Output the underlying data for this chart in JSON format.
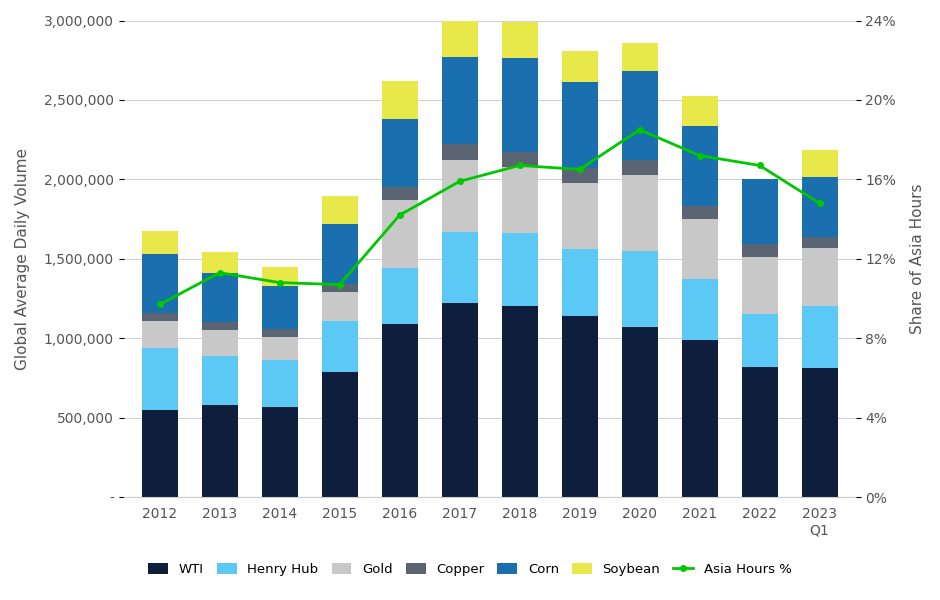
{
  "years": [
    "2012",
    "2013",
    "2014",
    "2015",
    "2016",
    "2017",
    "2018",
    "2019",
    "2020",
    "2021",
    "2022",
    "2023\nQ1"
  ],
  "WTI": [
    550000,
    580000,
    570000,
    790000,
    1090000,
    1220000,
    1200000,
    1140000,
    1070000,
    990000,
    820000,
    810000
  ],
  "HenryHub": [
    390000,
    310000,
    290000,
    320000,
    350000,
    450000,
    460000,
    420000,
    480000,
    380000,
    330000,
    390000
  ],
  "Gold": [
    170000,
    160000,
    150000,
    180000,
    430000,
    450000,
    420000,
    420000,
    480000,
    380000,
    360000,
    370000
  ],
  "Copper": [
    50000,
    50000,
    50000,
    50000,
    80000,
    100000,
    95000,
    90000,
    95000,
    85000,
    80000,
    65000
  ],
  "Corn": [
    370000,
    310000,
    270000,
    380000,
    430000,
    550000,
    590000,
    540000,
    560000,
    500000,
    410000,
    380000
  ],
  "Soybean": [
    145000,
    130000,
    120000,
    175000,
    240000,
    280000,
    225000,
    200000,
    175000,
    190000,
    0,
    170000
  ],
  "asia_pct": [
    9.7,
    11.3,
    10.8,
    10.7,
    14.2,
    15.9,
    16.7,
    16.5,
    18.5,
    17.2,
    16.7,
    14.8
  ],
  "colors": {
    "WTI": "#0d1f3c",
    "HenryHub": "#5bc8f5",
    "Gold": "#c8c8c8",
    "Copper": "#5a6472",
    "Corn": "#1a6faf",
    "Soybean": "#e8e84a",
    "Asia": "#00c800"
  },
  "ylim_left": [
    0,
    3000000
  ],
  "ylim_right": [
    0,
    24
  ],
  "ylabel_left": "Global Average Daily Volume",
  "ylabel_right": "Share of Asia Hours",
  "bg_color": "#ffffff",
  "grid_color": "#d0d0d0"
}
